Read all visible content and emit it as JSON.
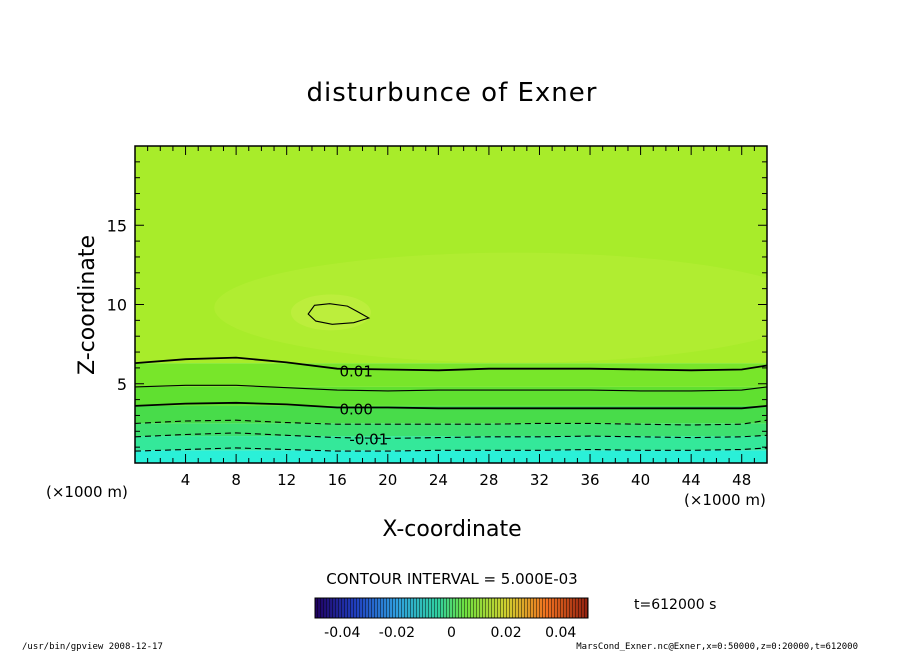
{
  "chart_data": {
    "type": "heatmap",
    "title": "disturbunce of Exner",
    "xlabel": "X-coordinate",
    "ylabel": "Z-coordinate",
    "x_unit": "(×1000 m)",
    "z_unit": "(×1000 m)",
    "xlim": [
      0,
      50
    ],
    "ylim": [
      0,
      20
    ],
    "x_ticks": [
      4,
      8,
      12,
      16,
      20,
      24,
      28,
      32,
      36,
      40,
      44,
      48
    ],
    "y_ticks": [
      5,
      10,
      15
    ],
    "contour_interval_text": "CONTOUR INTERVAL = 5.000E-03",
    "contour_labels": [
      {
        "text": "0.01",
        "x": 17.5,
        "z": 5.85
      },
      {
        "text": "0.00",
        "x": 17.5,
        "z": 3.45
      },
      {
        "text": "-0.01",
        "x": 18.5,
        "z": 1.55
      }
    ],
    "contours": [
      {
        "level": 0.01,
        "style": "solid",
        "points": [
          [
            0,
            6.3
          ],
          [
            4,
            6.55
          ],
          [
            8,
            6.65
          ],
          [
            12,
            6.35
          ],
          [
            16,
            5.95
          ],
          [
            20,
            5.9
          ],
          [
            24,
            5.85
          ],
          [
            28,
            5.95
          ],
          [
            32,
            5.95
          ],
          [
            36,
            5.95
          ],
          [
            40,
            5.9
          ],
          [
            44,
            5.85
          ],
          [
            48,
            5.9
          ],
          [
            50,
            6.15
          ]
        ]
      },
      {
        "level": 0.005,
        "style": "solid",
        "points": [
          [
            0,
            4.8
          ],
          [
            4,
            4.9
          ],
          [
            8,
            4.9
          ],
          [
            12,
            4.75
          ],
          [
            16,
            4.6
          ],
          [
            20,
            4.55
          ],
          [
            24,
            4.6
          ],
          [
            28,
            4.6
          ],
          [
            32,
            4.6
          ],
          [
            36,
            4.6
          ],
          [
            40,
            4.55
          ],
          [
            44,
            4.55
          ],
          [
            48,
            4.6
          ],
          [
            50,
            4.8
          ]
        ]
      },
      {
        "level": 0.0,
        "style": "solid",
        "points": [
          [
            0,
            3.6
          ],
          [
            4,
            3.75
          ],
          [
            8,
            3.8
          ],
          [
            12,
            3.7
          ],
          [
            16,
            3.5
          ],
          [
            20,
            3.5
          ],
          [
            24,
            3.45
          ],
          [
            28,
            3.45
          ],
          [
            32,
            3.45
          ],
          [
            36,
            3.45
          ],
          [
            40,
            3.45
          ],
          [
            44,
            3.45
          ],
          [
            48,
            3.45
          ],
          [
            50,
            3.6
          ]
        ]
      },
      {
        "level": -0.005,
        "style": "dashed",
        "points": [
          [
            0,
            2.5
          ],
          [
            4,
            2.65
          ],
          [
            8,
            2.7
          ],
          [
            12,
            2.55
          ],
          [
            16,
            2.45
          ],
          [
            20,
            2.45
          ],
          [
            24,
            2.45
          ],
          [
            28,
            2.45
          ],
          [
            32,
            2.5
          ],
          [
            36,
            2.5
          ],
          [
            40,
            2.45
          ],
          [
            44,
            2.4
          ],
          [
            48,
            2.45
          ],
          [
            50,
            2.7
          ]
        ]
      },
      {
        "level": -0.01,
        "style": "dashed",
        "points": [
          [
            0,
            1.65
          ],
          [
            4,
            1.8
          ],
          [
            8,
            1.9
          ],
          [
            12,
            1.75
          ],
          [
            16,
            1.6
          ],
          [
            20,
            1.55
          ],
          [
            24,
            1.6
          ],
          [
            28,
            1.65
          ],
          [
            32,
            1.65
          ],
          [
            36,
            1.7
          ],
          [
            40,
            1.65
          ],
          [
            44,
            1.6
          ],
          [
            48,
            1.65
          ],
          [
            50,
            1.75
          ]
        ]
      },
      {
        "level": -0.015,
        "style": "dashed",
        "points": [
          [
            0,
            0.75
          ],
          [
            4,
            0.85
          ],
          [
            8,
            0.95
          ],
          [
            12,
            0.85
          ],
          [
            16,
            0.75
          ],
          [
            20,
            0.75
          ],
          [
            24,
            0.8
          ],
          [
            28,
            0.8
          ],
          [
            32,
            0.8
          ],
          [
            36,
            0.85
          ],
          [
            40,
            0.8
          ],
          [
            44,
            0.8
          ],
          [
            48,
            0.85
          ],
          [
            50,
            0.95
          ]
        ]
      }
    ],
    "closed_contours": [
      {
        "level": 0.015,
        "style": "solid",
        "points": [
          [
            13.7,
            9.4
          ],
          [
            14.2,
            9.95
          ],
          [
            15.4,
            10.05
          ],
          [
            16.8,
            9.9
          ],
          [
            17.6,
            9.55
          ],
          [
            18.5,
            9.15
          ],
          [
            17.3,
            8.85
          ],
          [
            15.6,
            8.75
          ],
          [
            14.3,
            8.95
          ]
        ]
      }
    ],
    "fill_bands": [
      {
        "from": 0,
        "to": 0.8,
        "color": "#2af0d8"
      },
      {
        "from": 0.8,
        "to": 1.7,
        "color": "#34e89a"
      },
      {
        "from": 1.7,
        "to": 2.5,
        "color": "#3ee070"
      },
      {
        "from": 2.5,
        "to": 3.6,
        "color": "#48dc4a"
      },
      {
        "from": 3.6,
        "to": 4.8,
        "color": "#60e030"
      },
      {
        "from": 4.8,
        "to": 6.3,
        "color": "#78e62a"
      },
      {
        "from": 6.3,
        "to": 20,
        "color": "#a8ec2a"
      }
    ],
    "colorbar": {
      "range": [
        -0.05,
        0.05
      ],
      "tick_labels": [
        "-0.04",
        "-0.02",
        "0",
        "0.02",
        "0.04"
      ],
      "tick_values": [
        -0.04,
        -0.02,
        0,
        0.02,
        0.04
      ]
    },
    "time_label": "t=612000 s",
    "footer_left": "/usr/bin/gpview   2008-12-17",
    "footer_right": "MarsCond_Exner.nc@Exner,x=0:50000,z=0:20000,t=612000"
  }
}
